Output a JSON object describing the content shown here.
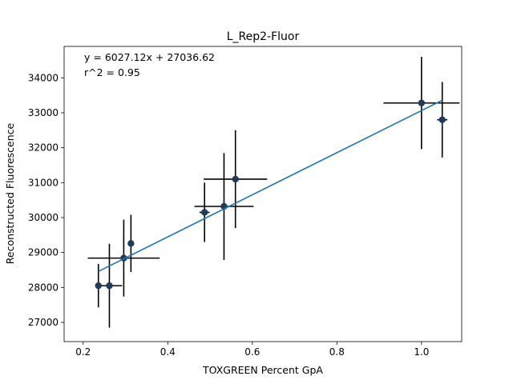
{
  "chart_data": {
    "type": "scatter",
    "title": "L_Rep2-Fluor",
    "xlabel": "TOXGREEN Percent GpA",
    "ylabel": "Reconstructed Fluorescence",
    "xlim": [
      0.155,
      1.095
    ],
    "ylim": [
      26450,
      34900
    ],
    "xticks": [
      0.2,
      0.4,
      0.6,
      0.8,
      1.0
    ],
    "xtick_labels": [
      "0.2",
      "0.4",
      "0.6",
      "0.8",
      "1.0"
    ],
    "yticks": [
      27000,
      28000,
      29000,
      30000,
      31000,
      32000,
      33000,
      34000
    ],
    "ytick_labels": [
      "27000",
      "28000",
      "29000",
      "30000",
      "31000",
      "32000",
      "33000",
      "34000"
    ],
    "grid": false,
    "annotations": [
      "y = 6027.12x + 27036.62",
      "r^2 = 0.95"
    ],
    "points": [
      {
        "x": 0.236,
        "y": 28050,
        "xerr": 0.0,
        "yerr": 620
      },
      {
        "x": 0.262,
        "y": 28050,
        "xerr": 0.03,
        "yerr": 1200
      },
      {
        "x": 0.296,
        "y": 28840,
        "xerr": 0.085,
        "yerr": 1100
      },
      {
        "x": 0.313,
        "y": 29260,
        "xerr": 0.0,
        "yerr": 820
      },
      {
        "x": 0.487,
        "y": 30150,
        "xerr": 0.012,
        "yerr": 850
      },
      {
        "x": 0.533,
        "y": 30320,
        "xerr": 0.07,
        "yerr": 1530
      },
      {
        "x": 0.56,
        "y": 31100,
        "xerr": 0.075,
        "yerr": 1400
      },
      {
        "x": 1.0,
        "y": 33280,
        "xerr": 0.09,
        "yerr": 1320
      },
      {
        "x": 1.049,
        "y": 32800,
        "xerr": 0.012,
        "yerr": 1080
      }
    ],
    "fit": {
      "slope": 6027.12,
      "intercept": 27036.62,
      "x_range": [
        0.236,
        1.049
      ]
    },
    "colors": {
      "points": "#1f3b57",
      "errorbars": "#000000",
      "fit_line": "#1f77b4"
    }
  }
}
